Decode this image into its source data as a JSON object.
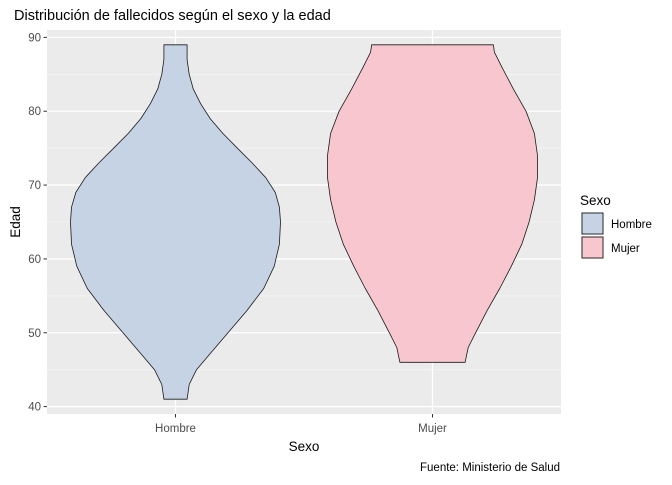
{
  "chart_data": {
    "type": "violin",
    "title": "Distribución de fallecidos según el sexo y la edad",
    "xlabel": "Sexo",
    "ylabel": "Edad",
    "caption": "Fuente: Ministerio de Salud",
    "categories": [
      "Hombre",
      "Mujer"
    ],
    "ylim": [
      39,
      91
    ],
    "yticks": [
      40,
      50,
      60,
      70,
      80,
      90
    ],
    "grid": true,
    "legend": {
      "title": "Sexo",
      "placement": "right",
      "items": [
        {
          "label": "Hombre",
          "color": "#C5D3E4"
        },
        {
          "label": "Mujer",
          "color": "#F7C6CE"
        }
      ]
    },
    "series": [
      {
        "name": "Hombre",
        "color": "#C5D3E4",
        "min": 41,
        "max": 89,
        "profile": [
          [
            41,
            0.11
          ],
          [
            43,
            0.13
          ],
          [
            45,
            0.2
          ],
          [
            47,
            0.32
          ],
          [
            50,
            0.5
          ],
          [
            53,
            0.68
          ],
          [
            56,
            0.84
          ],
          [
            59,
            0.94
          ],
          [
            62,
            0.99
          ],
          [
            65,
            1.0
          ],
          [
            67,
            0.99
          ],
          [
            69,
            0.95
          ],
          [
            71,
            0.86
          ],
          [
            73,
            0.73
          ],
          [
            75,
            0.59
          ],
          [
            77,
            0.45
          ],
          [
            79,
            0.33
          ],
          [
            81,
            0.24
          ],
          [
            83,
            0.17
          ],
          [
            85,
            0.13
          ],
          [
            87,
            0.11
          ],
          [
            89,
            0.11
          ]
        ]
      },
      {
        "name": "Mujer",
        "color": "#F7C6CE",
        "min": 46,
        "max": 89,
        "profile": [
          [
            46,
            0.31
          ],
          [
            48,
            0.34
          ],
          [
            50,
            0.41
          ],
          [
            53,
            0.52
          ],
          [
            56,
            0.64
          ],
          [
            59,
            0.75
          ],
          [
            62,
            0.85
          ],
          [
            65,
            0.92
          ],
          [
            68,
            0.97
          ],
          [
            71,
            1.0
          ],
          [
            74,
            1.0
          ],
          [
            77,
            0.97
          ],
          [
            80,
            0.89
          ],
          [
            83,
            0.77
          ],
          [
            86,
            0.66
          ],
          [
            88,
            0.59
          ],
          [
            89,
            0.58
          ]
        ]
      }
    ]
  }
}
